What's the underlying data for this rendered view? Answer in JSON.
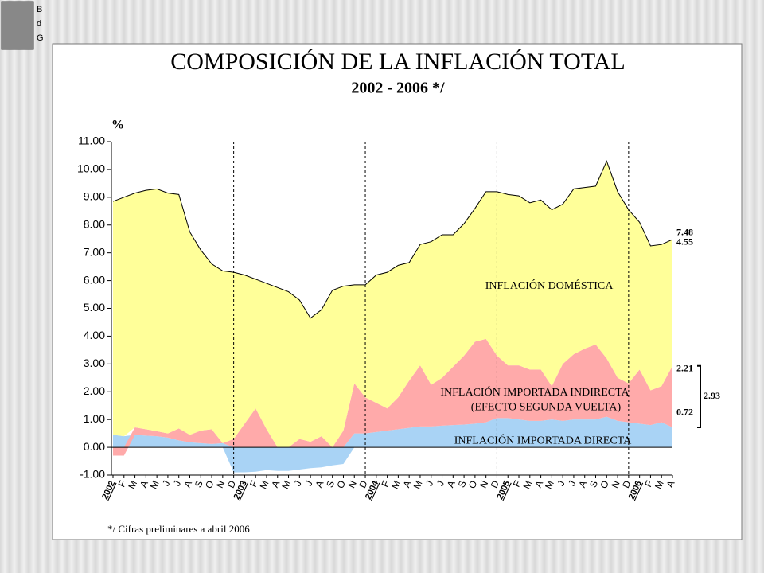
{
  "logo": [
    "B",
    "d",
    "G"
  ],
  "chart_data": {
    "type": "stacked_area",
    "title": "COMPOSICIÓN DE LA INFLACIÓN TOTAL",
    "subtitle": "2002 - 2006 */",
    "y_label": "%",
    "footnote": "*/ Cifras preliminares  a abril 2006",
    "categories": [
      "2002",
      "F",
      "M",
      "A",
      "M",
      "J",
      "J",
      "A",
      "S",
      "O",
      "N",
      "D",
      "2003",
      "F",
      "M",
      "A",
      "M",
      "J",
      "J",
      "A",
      "S",
      "O",
      "N",
      "D",
      "2004",
      "F",
      "M",
      "A",
      "M",
      "J",
      "J",
      "A",
      "S",
      "O",
      "N",
      "D",
      "2005",
      "F",
      "M",
      "A",
      "M",
      "J",
      "J",
      "A",
      "S",
      "O",
      "N",
      "D",
      "2006",
      "F",
      "M",
      "A"
    ],
    "series": [
      {
        "name": "INFLACIÓN IMPORTADA DIRECTA",
        "color": "#a9d3f5",
        "values": [
          0.45,
          0.4,
          0.45,
          0.42,
          0.4,
          0.35,
          0.25,
          0.18,
          0.15,
          0.12,
          0.15,
          -0.9,
          -0.9,
          -0.88,
          -0.82,
          -0.85,
          -0.85,
          -0.8,
          -0.75,
          -0.72,
          -0.65,
          -0.6,
          0.5,
          0.5,
          0.55,
          0.6,
          0.65,
          0.7,
          0.75,
          0.75,
          0.78,
          0.8,
          0.82,
          0.85,
          0.9,
          1.05,
          1.05,
          1.0,
          0.95,
          0.95,
          1.0,
          0.95,
          1.0,
          1.0,
          1.0,
          1.1,
          0.95,
          0.9,
          0.85,
          0.8,
          0.9,
          0.72
        ]
      },
      {
        "name": "INFLACIÓN IMPORTADA INDIRECTA",
        "color": "#ffaaaa",
        "values": [
          -0.3,
          -0.3,
          0.27,
          0.23,
          0.18,
          0.15,
          0.43,
          0.27,
          0.45,
          0.53,
          0,
          0.3,
          0.85,
          1.4,
          0.65,
          0,
          0,
          0.3,
          0.2,
          0.4,
          0,
          0.6,
          1.8,
          1.3,
          1.05,
          0.8,
          1.15,
          1.7,
          2.2,
          1.5,
          1.72,
          2.1,
          2.48,
          2.95,
          3.0,
          2.25,
          1.9,
          1.95,
          1.85,
          1.85,
          1.2,
          2.05,
          2.35,
          2.55,
          2.7,
          2.1,
          1.55,
          1.4,
          1.95,
          1.25,
          1.3,
          2.21
        ]
      },
      {
        "name": "INFLACIÓN DOMÉSTICA",
        "color": "#ffff99",
        "values": [
          8.4,
          8.6,
          8.43,
          8.6,
          8.72,
          8.65,
          8.42,
          7.3,
          6.5,
          5.95,
          6.2,
          6.0,
          5.35,
          4.65,
          5.25,
          5.75,
          5.6,
          5.0,
          4.45,
          4.55,
          5.65,
          5.2,
          3.55,
          4.05,
          4.6,
          4.9,
          4.75,
          4.25,
          4.35,
          5.15,
          5.15,
          4.75,
          4.75,
          4.8,
          5.3,
          5.9,
          6.15,
          6.1,
          6.0,
          6.1,
          6.35,
          5.75,
          5.95,
          5.8,
          5.7,
          7.1,
          6.7,
          6.25,
          5.3,
          5.2,
          5.1,
          4.55
        ]
      }
    ],
    "sub_label": "(EFECTO SEGUNDA VUELTA)",
    "total": 7.48,
    "imported_total": 2.93,
    "ylim": [
      -1,
      11
    ],
    "yticks": [
      {
        "value": -1,
        "label": "-1.00"
      },
      {
        "value": 0,
        "label": "0.00"
      },
      {
        "value": 1,
        "label": "1.00"
      },
      {
        "value": 2,
        "label": "2.00"
      },
      {
        "value": 3,
        "label": "3.00"
      },
      {
        "value": 4,
        "label": "4.00"
      },
      {
        "value": 5,
        "label": "5.00"
      },
      {
        "value": 6,
        "label": "6.00"
      },
      {
        "value": 7,
        "label": "7.00"
      },
      {
        "value": 8,
        "label": "8.00"
      },
      {
        "value": 9,
        "label": "9.00"
      },
      {
        "value": 10,
        "label": "10.00"
      },
      {
        "value": 11,
        "label": "11.00"
      }
    ]
  }
}
